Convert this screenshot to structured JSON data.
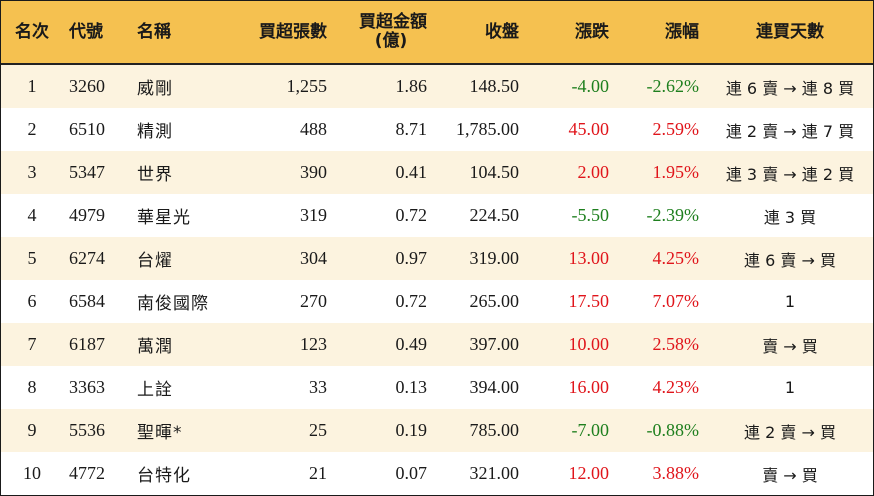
{
  "headers": {
    "rank": "名次",
    "code": "代號",
    "name": "名稱",
    "buy_lots": "買超張數",
    "buy_amount_line1": "買超金額",
    "buy_amount_line2": "(億)",
    "close": "收盤",
    "change": "漲跌",
    "change_pct": "漲幅",
    "streak": "連買天數"
  },
  "colors": {
    "header_bg": "#f5c150",
    "odd_row_bg": "#fcf3df",
    "up": "#e0151b",
    "down": "#1e7f1e"
  },
  "rows": [
    {
      "rank": "1",
      "code": "3260",
      "name": "威剛",
      "buy_lots": "1,255",
      "buy_amount": "1.86",
      "close": "148.50",
      "change": "-4.00",
      "change_pct": "-2.62%",
      "dir": "down",
      "streak": "連 6 賣 → 連 8 買"
    },
    {
      "rank": "2",
      "code": "6510",
      "name": "精測",
      "buy_lots": "488",
      "buy_amount": "8.71",
      "close": "1,785.00",
      "change": "45.00",
      "change_pct": "2.59%",
      "dir": "up",
      "streak": "連 2 賣 → 連 7 買"
    },
    {
      "rank": "3",
      "code": "5347",
      "name": "世界",
      "buy_lots": "390",
      "buy_amount": "0.41",
      "close": "104.50",
      "change": "2.00",
      "change_pct": "1.95%",
      "dir": "up",
      "streak": "連 3 賣 → 連 2 買"
    },
    {
      "rank": "4",
      "code": "4979",
      "name": "華星光",
      "buy_lots": "319",
      "buy_amount": "0.72",
      "close": "224.50",
      "change": "-5.50",
      "change_pct": "-2.39%",
      "dir": "down",
      "streak": "連 3 買"
    },
    {
      "rank": "5",
      "code": "6274",
      "name": "台燿",
      "buy_lots": "304",
      "buy_amount": "0.97",
      "close": "319.00",
      "change": "13.00",
      "change_pct": "4.25%",
      "dir": "up",
      "streak": "連 6 賣 → 買"
    },
    {
      "rank": "6",
      "code": "6584",
      "name": "南俊國際",
      "buy_lots": "270",
      "buy_amount": "0.72",
      "close": "265.00",
      "change": "17.50",
      "change_pct": "7.07%",
      "dir": "up",
      "streak": "1"
    },
    {
      "rank": "7",
      "code": "6187",
      "name": "萬潤",
      "buy_lots": "123",
      "buy_amount": "0.49",
      "close": "397.00",
      "change": "10.00",
      "change_pct": "2.58%",
      "dir": "up",
      "streak": "賣 → 買"
    },
    {
      "rank": "8",
      "code": "3363",
      "name": "上詮",
      "buy_lots": "33",
      "buy_amount": "0.13",
      "close": "394.00",
      "change": "16.00",
      "change_pct": "4.23%",
      "dir": "up",
      "streak": "1"
    },
    {
      "rank": "9",
      "code": "5536",
      "name": "聖暉*",
      "buy_lots": "25",
      "buy_amount": "0.19",
      "close": "785.00",
      "change": "-7.00",
      "change_pct": "-0.88%",
      "dir": "down",
      "streak": "連 2 賣 → 買"
    },
    {
      "rank": "10",
      "code": "4772",
      "name": "台特化",
      "buy_lots": "21",
      "buy_amount": "0.07",
      "close": "321.00",
      "change": "12.00",
      "change_pct": "3.88%",
      "dir": "up",
      "streak": "賣 → 買"
    }
  ]
}
